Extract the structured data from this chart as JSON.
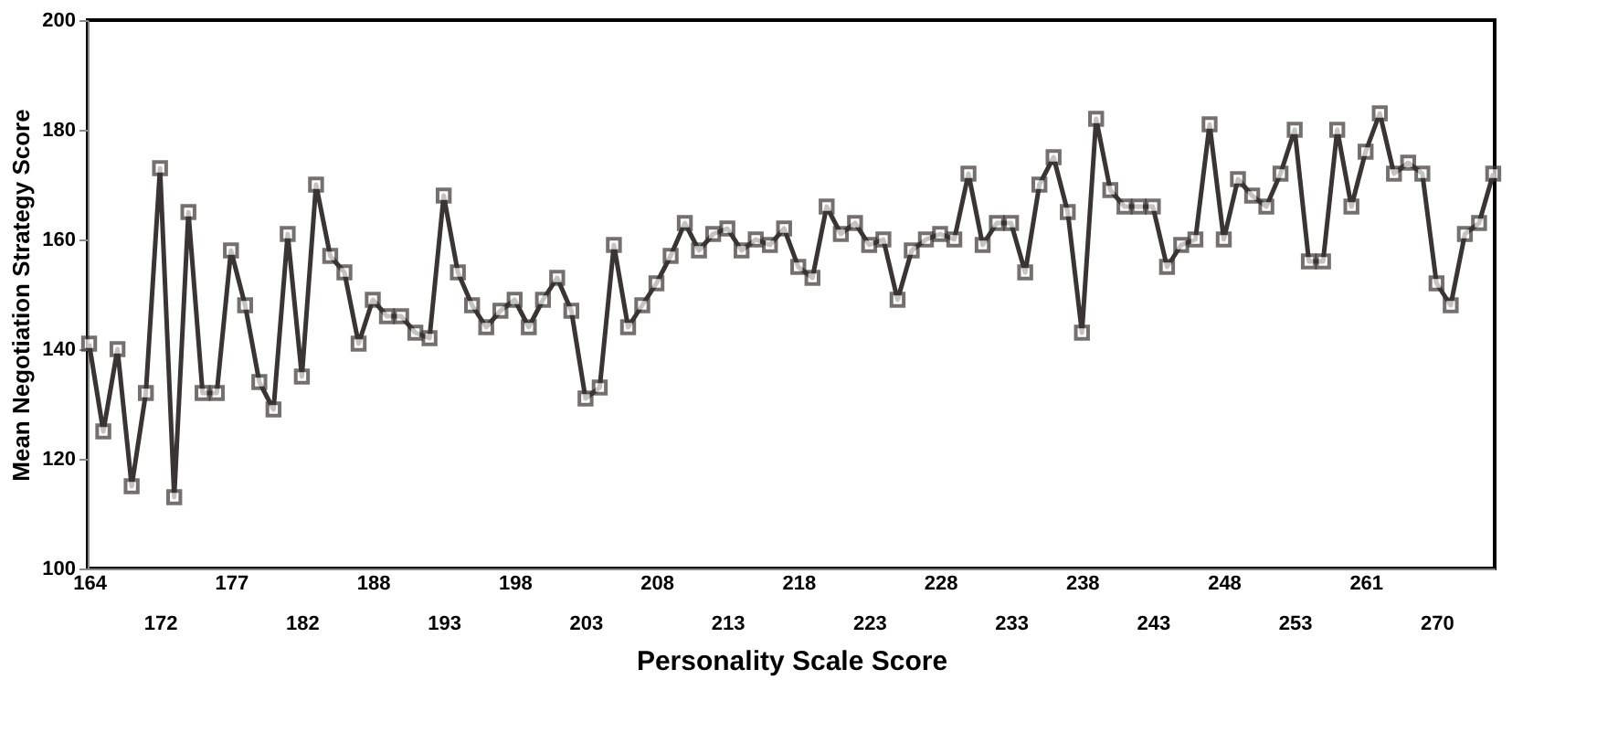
{
  "chart_data": {
    "type": "line",
    "xlabel": "Personality Scale Score",
    "ylabel": "Mean Negotiation Strategy Score",
    "categories": [
      "164",
      null,
      null,
      null,
      null,
      "172",
      null,
      null,
      null,
      null,
      "177",
      null,
      null,
      null,
      null,
      "182",
      null,
      null,
      null,
      null,
      "188",
      null,
      null,
      null,
      null,
      "193",
      null,
      null,
      null,
      null,
      "198",
      null,
      null,
      null,
      null,
      "203",
      null,
      null,
      null,
      null,
      "208",
      null,
      null,
      null,
      null,
      "213",
      null,
      null,
      null,
      null,
      "218",
      null,
      null,
      null,
      null,
      "223",
      null,
      null,
      null,
      null,
      "228",
      null,
      null,
      null,
      null,
      "233",
      null,
      null,
      null,
      null,
      "238",
      null,
      null,
      null,
      null,
      "243",
      null,
      null,
      null,
      null,
      "248",
      null,
      null,
      null,
      null,
      "253",
      null,
      null,
      null,
      null,
      "261",
      null,
      null,
      null,
      null,
      "270",
      null,
      null,
      null,
      null
    ],
    "series": [
      {
        "color": "#3a3535",
        "values": [
          141,
          125,
          140,
          115,
          132,
          173,
          113,
          165,
          132,
          132,
          158,
          148,
          134,
          129,
          161,
          135,
          170,
          157,
          154,
          141,
          149,
          146,
          146,
          143,
          142,
          168,
          154,
          148,
          144,
          147,
          149,
          144,
          149,
          153,
          147,
          131,
          133,
          159,
          144,
          148,
          152,
          157,
          163,
          158,
          161,
          162,
          158,
          160,
          159,
          162,
          155,
          153,
          166,
          161,
          163,
          159,
          160,
          149,
          158,
          160,
          161,
          160,
          172,
          159,
          163,
          163,
          154,
          170,
          175,
          165,
          143,
          182,
          169,
          166,
          166,
          166,
          155,
          159,
          160,
          181,
          160,
          171,
          168,
          166,
          172,
          180,
          156,
          156,
          180,
          166,
          176,
          183,
          172,
          174,
          172,
          152,
          148,
          161,
          163,
          172
        ]
      }
    ],
    "ylim": [
      100,
      200
    ],
    "yticks": [
      100,
      120,
      140,
      160,
      180,
      200
    ],
    "grid": false,
    "legend": false,
    "marker": "square",
    "line_style": "solid"
  }
}
